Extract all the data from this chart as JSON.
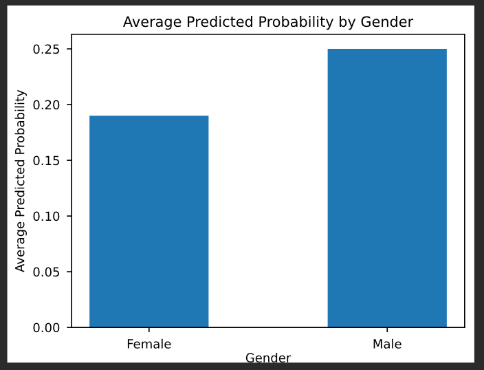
{
  "chart_data": {
    "type": "bar",
    "title": "Average Predicted Probability by Gender",
    "xlabel": "Gender",
    "ylabel": "Average Predicted Probability",
    "categories": [
      "Female",
      "Male"
    ],
    "values": [
      0.19,
      0.25
    ],
    "color": "#1f77b4",
    "ylim": [
      0,
      0.263
    ],
    "yticks": [
      {
        "value": 0,
        "label": "0.00"
      },
      {
        "value": 0.05,
        "label": "0.05"
      },
      {
        "value": 0.1,
        "label": "0.10"
      },
      {
        "value": 0.15,
        "label": "0.15"
      },
      {
        "value": 0.2,
        "label": "0.20"
      },
      {
        "value": 0.25,
        "label": "0.25"
      }
    ],
    "grid": false
  }
}
